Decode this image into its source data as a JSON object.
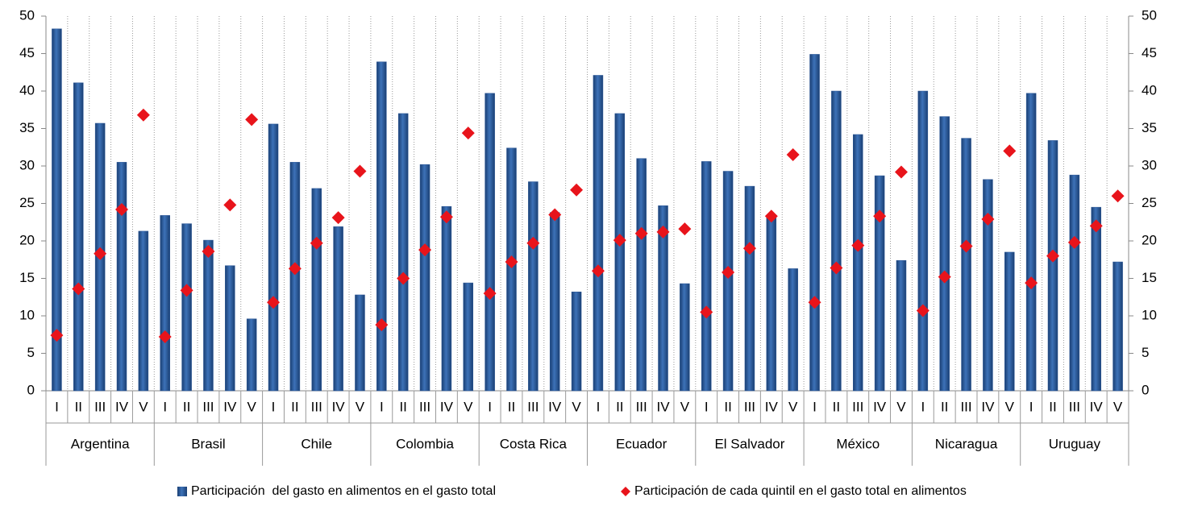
{
  "chart_data": {
    "type": "bar",
    "groups": [
      "Argentina",
      "Brasil",
      "Chile",
      "Colombia",
      "Costa Rica",
      "Ecuador",
      "El Salvador",
      "México",
      "Nicaragua",
      "Uruguay"
    ],
    "categories": [
      "I",
      "II",
      "III",
      "IV",
      "V",
      "I",
      "II",
      "III",
      "IV",
      "V",
      "I",
      "II",
      "III",
      "IV",
      "V",
      "I",
      "II",
      "III",
      "IV",
      "V",
      "I",
      "II",
      "III",
      "IV",
      "V",
      "I",
      "II",
      "III",
      "IV",
      "V",
      "I",
      "II",
      "III",
      "IV",
      "V",
      "I",
      "II",
      "III",
      "IV",
      "V",
      "I",
      "II",
      "III",
      "IV",
      "V",
      "I",
      "II",
      "III",
      "IV",
      "V"
    ],
    "series": [
      {
        "name": "Participación  del gasto en alimentos en el gasto total",
        "type": "bar",
        "color": "#2b5797",
        "values": [
          48.3,
          41.1,
          35.7,
          30.5,
          21.3,
          23.4,
          22.3,
          20.1,
          16.7,
          9.6,
          35.6,
          30.5,
          27.0,
          21.9,
          12.8,
          43.9,
          37.0,
          30.2,
          24.6,
          14.4,
          39.7,
          32.4,
          27.9,
          23.8,
          13.2,
          42.1,
          37.0,
          31.0,
          24.7,
          14.3,
          30.6,
          29.3,
          27.3,
          23.3,
          16.3,
          44.9,
          40.0,
          34.2,
          28.7,
          17.4,
          40.0,
          36.6,
          33.7,
          28.2,
          18.5,
          39.7,
          33.4,
          28.8,
          24.5,
          17.2
        ]
      },
      {
        "name": "Participación de cada quintil en el gasto total en alimentos",
        "type": "scatter",
        "axis": "y2",
        "color": "#e8141b",
        "values": [
          7.4,
          13.6,
          18.3,
          24.2,
          36.8,
          7.2,
          13.4,
          18.6,
          24.8,
          36.2,
          11.8,
          16.3,
          19.7,
          23.1,
          29.3,
          8.8,
          15.0,
          18.8,
          23.2,
          34.4,
          13.0,
          17.2,
          19.7,
          23.5,
          26.8,
          16.0,
          20.1,
          21.0,
          21.2,
          21.6,
          10.5,
          15.8,
          19.0,
          23.3,
          31.5,
          11.8,
          16.4,
          19.4,
          23.3,
          29.2,
          10.7,
          15.2,
          19.3,
          22.9,
          32.0,
          14.4,
          18.0,
          19.8,
          22.0,
          26.0
        ]
      }
    ],
    "ylim": [
      0,
      50
    ],
    "yticks": [
      0,
      5,
      10,
      15,
      20,
      25,
      30,
      35,
      40,
      45,
      50
    ],
    "y2lim": [
      0,
      50
    ],
    "y2ticks": [
      0,
      5,
      10,
      15,
      20,
      25,
      30,
      35,
      40,
      45,
      50
    ],
    "legend": "bottom"
  }
}
